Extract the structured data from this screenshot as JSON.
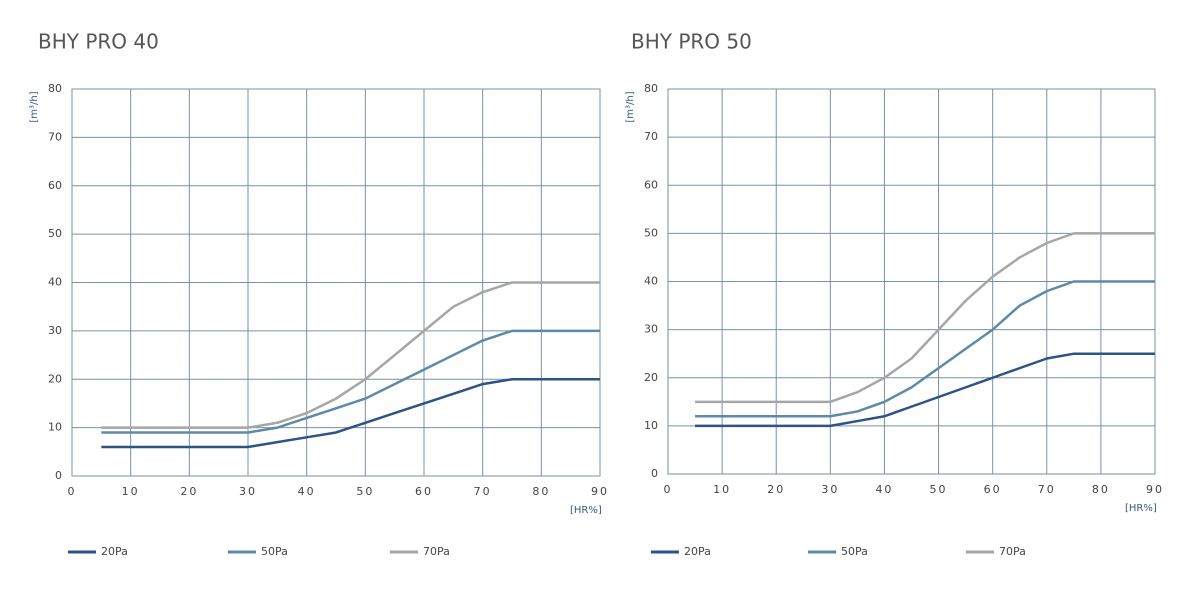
{
  "chart_data": [
    {
      "type": "line",
      "title": "BHY PRO 40",
      "y_label": "[m³/h]",
      "x_label": "[HR%]",
      "x": [
        5,
        10,
        15,
        20,
        25,
        30,
        35,
        40,
        45,
        50,
        55,
        60,
        65,
        70,
        75,
        80,
        85,
        90
      ],
      "xlim": [
        0,
        90
      ],
      "xticks": [
        0,
        10,
        20,
        30,
        40,
        50,
        60,
        70,
        80,
        90
      ],
      "ylim": [
        0,
        80
      ],
      "yticks": [
        0,
        10,
        20,
        30,
        40,
        50,
        60,
        70,
        80
      ],
      "grid": true,
      "series": [
        {
          "name": "20Pa",
          "color": "#2e5387",
          "values": [
            6,
            6,
            6,
            6,
            6,
            6,
            7,
            8,
            9,
            11,
            13,
            15,
            17,
            19,
            20,
            20,
            20,
            20
          ]
        },
        {
          "name": "50Pa",
          "color": "#5e8aa8",
          "values": [
            9,
            9,
            9,
            9,
            9,
            9,
            10,
            12,
            14,
            16,
            19,
            22,
            25,
            28,
            30,
            30,
            30,
            30
          ]
        },
        {
          "name": "70Pa",
          "color": "#a6a6a6",
          "values": [
            10,
            10,
            10,
            10,
            10,
            10,
            11,
            13,
            16,
            20,
            25,
            30,
            35,
            38,
            40,
            40,
            40,
            40
          ]
        }
      ]
    },
    {
      "type": "line",
      "title": "BHY PRO 50",
      "y_label": "[m³/h]",
      "x_label": "[HR%]",
      "x": [
        5,
        10,
        15,
        20,
        25,
        30,
        35,
        40,
        45,
        50,
        55,
        60,
        65,
        70,
        75,
        80,
        85,
        90
      ],
      "xlim": [
        0,
        90
      ],
      "xticks": [
        0,
        10,
        20,
        30,
        40,
        50,
        60,
        70,
        80,
        90
      ],
      "ylim": [
        0,
        80
      ],
      "yticks": [
        0,
        10,
        20,
        30,
        40,
        50,
        60,
        70,
        80
      ],
      "grid": true,
      "series": [
        {
          "name": "20Pa",
          "color": "#2e5387",
          "values": [
            10,
            10,
            10,
            10,
            10,
            10,
            11,
            12,
            14,
            16,
            18,
            20,
            22,
            24,
            25,
            25,
            25,
            25
          ]
        },
        {
          "name": "50Pa",
          "color": "#5e8aa8",
          "values": [
            12,
            12,
            12,
            12,
            12,
            12,
            13,
            15,
            18,
            22,
            26,
            30,
            35,
            38,
            40,
            40,
            40,
            40
          ]
        },
        {
          "name": "70Pa",
          "color": "#a6a6a6",
          "values": [
            15,
            15,
            15,
            15,
            15,
            15,
            17,
            20,
            24,
            30,
            36,
            41,
            45,
            48,
            50,
            50,
            50,
            50
          ]
        }
      ]
    }
  ]
}
